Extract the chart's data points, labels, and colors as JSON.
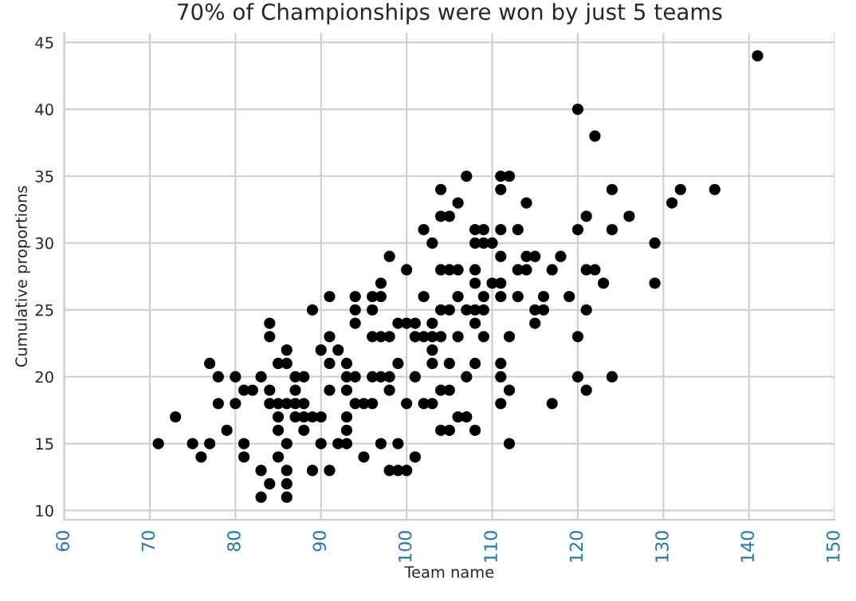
{
  "chart_data": {
    "type": "scatter",
    "title": "70% of Championships were won by just 5 teams",
    "xlabel": "Team name",
    "ylabel": "Cumulative proportions",
    "xlim": [
      60,
      150
    ],
    "xticks": [
      60,
      70,
      80,
      90,
      100,
      110,
      120,
      130,
      140,
      150
    ],
    "ylim": [
      9.3,
      45.7
    ],
    "yticks": [
      10,
      15,
      20,
      25,
      30,
      35,
      40,
      45
    ],
    "grid": true,
    "marker": "circle",
    "series": [
      {
        "color": "#000000",
        "x": [
          141,
          120,
          122,
          107,
          111,
          112,
          104,
          111,
          124,
          132,
          136,
          106,
          114,
          131,
          104,
          105,
          121,
          126,
          102,
          108,
          109,
          111,
          113,
          120,
          124,
          103,
          108,
          109,
          110,
          129,
          98,
          111,
          114,
          115,
          118,
          100,
          104,
          105,
          106,
          108,
          113,
          114,
          117,
          121,
          122,
          97,
          108,
          110,
          111,
          123,
          129,
          91,
          94,
          96,
          97,
          102,
          106,
          109,
          111,
          113,
          116,
          119,
          89,
          94,
          96,
          104,
          105,
          107,
          108,
          109,
          115,
          116,
          121,
          84,
          94,
          99,
          100,
          101,
          103,
          108,
          115,
          84,
          91,
          96,
          97,
          98,
          101,
          102,
          103,
          104,
          106,
          109,
          112,
          120,
          86,
          90,
          92,
          103,
          77,
          85,
          86,
          91,
          93,
          99,
          103,
          105,
          108,
          111,
          78,
          80,
          83,
          87,
          88,
          93,
          94,
          96,
          97,
          98,
          101,
          107,
          111,
          120,
          124,
          81,
          82,
          84,
          87,
          91,
          93,
          98,
          104,
          105,
          112,
          121,
          78,
          80,
          84,
          85,
          86,
          87,
          88,
          94,
          95,
          96,
          100,
          102,
          103,
          111,
          117,
          73,
          85,
          87,
          88,
          89,
          90,
          93,
          106,
          107,
          79,
          85,
          88,
          93,
          104,
          105,
          108,
          71,
          75,
          77,
          81,
          86,
          90,
          92,
          93,
          97,
          99,
          112,
          76,
          81,
          85,
          95,
          101,
          83,
          86,
          89,
          91,
          98,
          99,
          100,
          84,
          86,
          83,
          86
        ],
        "values": [
          44,
          40,
          38,
          35,
          35,
          35,
          34,
          34,
          34,
          34,
          34,
          33,
          33,
          33,
          32,
          32,
          32,
          32,
          31,
          31,
          31,
          31,
          31,
          31,
          31,
          30,
          30,
          30,
          30,
          30,
          29,
          29,
          29,
          29,
          29,
          28,
          28,
          28,
          28,
          28,
          28,
          28,
          28,
          28,
          28,
          27,
          27,
          27,
          27,
          27,
          27,
          26,
          26,
          26,
          26,
          26,
          26,
          26,
          26,
          26,
          26,
          26,
          25,
          25,
          25,
          25,
          25,
          25,
          25,
          25,
          25,
          25,
          25,
          24,
          24,
          24,
          24,
          24,
          24,
          24,
          24,
          23,
          23,
          23,
          23,
          23,
          23,
          23,
          23,
          23,
          23,
          23,
          23,
          23,
          22,
          22,
          22,
          22,
          21,
          21,
          21,
          21,
          21,
          21,
          21,
          21,
          21,
          21,
          20,
          20,
          20,
          20,
          20,
          20,
          20,
          20,
          20,
          20,
          20,
          20,
          20,
          20,
          20,
          19,
          19,
          19,
          19,
          19,
          19,
          19,
          19,
          19,
          19,
          19,
          18,
          18,
          18,
          18,
          18,
          18,
          18,
          18,
          18,
          18,
          18,
          18,
          18,
          18,
          18,
          17,
          17,
          17,
          17,
          17,
          17,
          17,
          17,
          17,
          16,
          16,
          16,
          16,
          16,
          16,
          16,
          15,
          15,
          15,
          15,
          15,
          15,
          15,
          15,
          15,
          15,
          15,
          14,
          14,
          14,
          14,
          14,
          13,
          13,
          13,
          13,
          13,
          13,
          13,
          12,
          12,
          11,
          11
        ]
      }
    ]
  }
}
